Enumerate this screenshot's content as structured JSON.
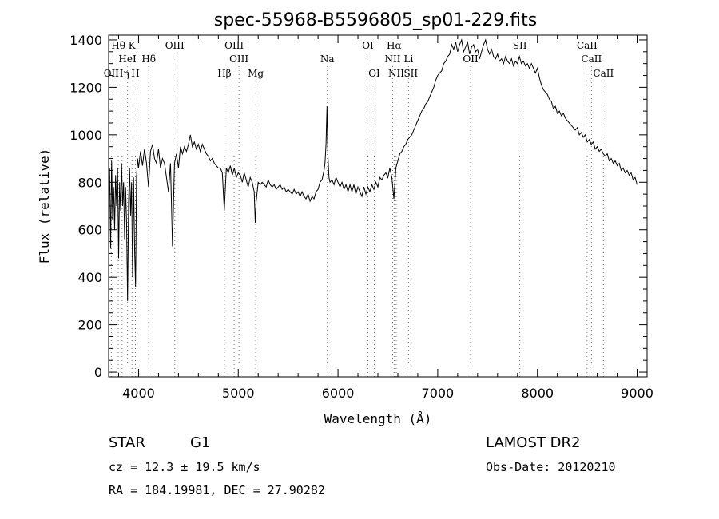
{
  "chart_data": {
    "type": "line",
    "title": "spec-55968-B5596805_sp01-229.fits",
    "xlabel": "Wavelength (Å)",
    "ylabel": "Flux (relative)",
    "xlim": [
      3700,
      9100
    ],
    "ylim": [
      -20,
      1420
    ],
    "xticks": [
      4000,
      5000,
      6000,
      7000,
      8000,
      9000
    ],
    "yticks": [
      0,
      200,
      400,
      600,
      800,
      1000,
      1200,
      1400
    ],
    "grid": false,
    "series": [
      {
        "points": [
          [
            3700,
            720
          ],
          [
            3710,
            860
          ],
          [
            3720,
            520
          ],
          [
            3730,
            890
          ],
          [
            3740,
            640
          ],
          [
            3750,
            780
          ],
          [
            3760,
            600
          ],
          [
            3770,
            830
          ],
          [
            3780,
            700
          ],
          [
            3790,
            860
          ],
          [
            3800,
            480
          ],
          [
            3810,
            800
          ],
          [
            3820,
            680
          ],
          [
            3830,
            880
          ],
          [
            3840,
            700
          ],
          [
            3850,
            800
          ],
          [
            3860,
            560
          ],
          [
            3870,
            780
          ],
          [
            3880,
            620
          ],
          [
            3890,
            300
          ],
          [
            3900,
            720
          ],
          [
            3910,
            860
          ],
          [
            3920,
            660
          ],
          [
            3930,
            800
          ],
          [
            3940,
            400
          ],
          [
            3950,
            820
          ],
          [
            3960,
            520
          ],
          [
            3970,
            360
          ],
          [
            3980,
            820
          ],
          [
            3990,
            900
          ],
          [
            4000,
            860
          ],
          [
            4020,
            930
          ],
          [
            4040,
            870
          ],
          [
            4060,
            940
          ],
          [
            4080,
            880
          ],
          [
            4100,
            780
          ],
          [
            4120,
            930
          ],
          [
            4140,
            960
          ],
          [
            4160,
            900
          ],
          [
            4180,
            880
          ],
          [
            4200,
            940
          ],
          [
            4220,
            860
          ],
          [
            4240,
            900
          ],
          [
            4260,
            880
          ],
          [
            4280,
            820
          ],
          [
            4300,
            760
          ],
          [
            4320,
            880
          ],
          [
            4340,
            530
          ],
          [
            4360,
            880
          ],
          [
            4380,
            920
          ],
          [
            4400,
            860
          ],
          [
            4420,
            950
          ],
          [
            4440,
            920
          ],
          [
            4460,
            950
          ],
          [
            4480,
            930
          ],
          [
            4500,
            960
          ],
          [
            4520,
            1000
          ],
          [
            4540,
            950
          ],
          [
            4560,
            970
          ],
          [
            4580,
            940
          ],
          [
            4600,
            960
          ],
          [
            4620,
            930
          ],
          [
            4640,
            960
          ],
          [
            4660,
            940
          ],
          [
            4680,
            920
          ],
          [
            4700,
            910
          ],
          [
            4720,
            890
          ],
          [
            4740,
            900
          ],
          [
            4760,
            880
          ],
          [
            4780,
            870
          ],
          [
            4800,
            860
          ],
          [
            4820,
            860
          ],
          [
            4840,
            840
          ],
          [
            4860,
            680
          ],
          [
            4880,
            860
          ],
          [
            4900,
            840
          ],
          [
            4920,
            870
          ],
          [
            4940,
            830
          ],
          [
            4960,
            860
          ],
          [
            4980,
            820
          ],
          [
            5000,
            840
          ],
          [
            5020,
            830
          ],
          [
            5040,
            800
          ],
          [
            5060,
            840
          ],
          [
            5080,
            810
          ],
          [
            5100,
            780
          ],
          [
            5120,
            820
          ],
          [
            5140,
            800
          ],
          [
            5160,
            760
          ],
          [
            5170,
            630
          ],
          [
            5180,
            720
          ],
          [
            5200,
            800
          ],
          [
            5220,
            790
          ],
          [
            5240,
            800
          ],
          [
            5260,
            790
          ],
          [
            5280,
            780
          ],
          [
            5300,
            810
          ],
          [
            5320,
            790
          ],
          [
            5340,
            780
          ],
          [
            5360,
            790
          ],
          [
            5380,
            770
          ],
          [
            5400,
            780
          ],
          [
            5420,
            790
          ],
          [
            5440,
            770
          ],
          [
            5460,
            780
          ],
          [
            5480,
            760
          ],
          [
            5500,
            770
          ],
          [
            5520,
            760
          ],
          [
            5540,
            750
          ],
          [
            5560,
            770
          ],
          [
            5580,
            750
          ],
          [
            5600,
            760
          ],
          [
            5620,
            740
          ],
          [
            5640,
            760
          ],
          [
            5660,
            740
          ],
          [
            5680,
            730
          ],
          [
            5700,
            750
          ],
          [
            5720,
            720
          ],
          [
            5740,
            740
          ],
          [
            5760,
            730
          ],
          [
            5780,
            760
          ],
          [
            5800,
            770
          ],
          [
            5820,
            800
          ],
          [
            5840,
            810
          ],
          [
            5860,
            850
          ],
          [
            5870,
            880
          ],
          [
            5880,
            960
          ],
          [
            5890,
            1120
          ],
          [
            5895,
            980
          ],
          [
            5900,
            900
          ],
          [
            5910,
            820
          ],
          [
            5920,
            800
          ],
          [
            5940,
            810
          ],
          [
            5960,
            790
          ],
          [
            5980,
            820
          ],
          [
            6000,
            800
          ],
          [
            6020,
            780
          ],
          [
            6040,
            800
          ],
          [
            6060,
            770
          ],
          [
            6080,
            790
          ],
          [
            6100,
            760
          ],
          [
            6120,
            790
          ],
          [
            6140,
            760
          ],
          [
            6160,
            790
          ],
          [
            6180,
            750
          ],
          [
            6200,
            780
          ],
          [
            6220,
            760
          ],
          [
            6240,
            740
          ],
          [
            6260,
            780
          ],
          [
            6280,
            750
          ],
          [
            6300,
            780
          ],
          [
            6320,
            760
          ],
          [
            6340,
            790
          ],
          [
            6360,
            770
          ],
          [
            6380,
            800
          ],
          [
            6400,
            780
          ],
          [
            6420,
            820
          ],
          [
            6440,
            810
          ],
          [
            6460,
            830
          ],
          [
            6480,
            840
          ],
          [
            6500,
            820
          ],
          [
            6520,
            860
          ],
          [
            6540,
            820
          ],
          [
            6560,
            730
          ],
          [
            6570,
            790
          ],
          [
            6580,
            860
          ],
          [
            6600,
            890
          ],
          [
            6620,
            920
          ],
          [
            6640,
            930
          ],
          [
            6660,
            950
          ],
          [
            6680,
            960
          ],
          [
            6700,
            980
          ],
          [
            6720,
            990
          ],
          [
            6740,
            1000
          ],
          [
            6760,
            1020
          ],
          [
            6780,
            1040
          ],
          [
            6800,
            1060
          ],
          [
            6820,
            1080
          ],
          [
            6840,
            1100
          ],
          [
            6860,
            1110
          ],
          [
            6880,
            1130
          ],
          [
            6900,
            1140
          ],
          [
            6920,
            1160
          ],
          [
            6940,
            1180
          ],
          [
            6960,
            1200
          ],
          [
            6980,
            1230
          ],
          [
            7000,
            1250
          ],
          [
            7020,
            1260
          ],
          [
            7040,
            1270
          ],
          [
            7060,
            1300
          ],
          [
            7080,
            1310
          ],
          [
            7100,
            1330
          ],
          [
            7120,
            1340
          ],
          [
            7140,
            1380
          ],
          [
            7160,
            1360
          ],
          [
            7180,
            1390
          ],
          [
            7200,
            1350
          ],
          [
            7220,
            1380
          ],
          [
            7240,
            1400
          ],
          [
            7260,
            1350
          ],
          [
            7280,
            1370
          ],
          [
            7300,
            1390
          ],
          [
            7320,
            1340
          ],
          [
            7340,
            1370
          ],
          [
            7360,
            1380
          ],
          [
            7380,
            1350
          ],
          [
            7400,
            1360
          ],
          [
            7420,
            1320
          ],
          [
            7440,
            1350
          ],
          [
            7460,
            1380
          ],
          [
            7480,
            1400
          ],
          [
            7500,
            1360
          ],
          [
            7520,
            1340
          ],
          [
            7540,
            1360
          ],
          [
            7560,
            1330
          ],
          [
            7580,
            1320
          ],
          [
            7600,
            1340
          ],
          [
            7620,
            1310
          ],
          [
            7640,
            1320
          ],
          [
            7660,
            1300
          ],
          [
            7680,
            1330
          ],
          [
            7700,
            1310
          ],
          [
            7720,
            1300
          ],
          [
            7740,
            1320
          ],
          [
            7760,
            1290
          ],
          [
            7780,
            1310
          ],
          [
            7800,
            1300
          ],
          [
            7820,
            1330
          ],
          [
            7840,
            1300
          ],
          [
            7860,
            1310
          ],
          [
            7880,
            1290
          ],
          [
            7900,
            1300
          ],
          [
            7920,
            1280
          ],
          [
            7940,
            1300
          ],
          [
            7960,
            1280
          ],
          [
            7980,
            1260
          ],
          [
            8000,
            1280
          ],
          [
            8020,
            1240
          ],
          [
            8040,
            1210
          ],
          [
            8060,
            1190
          ],
          [
            8080,
            1180
          ],
          [
            8100,
            1170
          ],
          [
            8120,
            1150
          ],
          [
            8140,
            1140
          ],
          [
            8160,
            1110
          ],
          [
            8180,
            1120
          ],
          [
            8200,
            1090
          ],
          [
            8220,
            1100
          ],
          [
            8240,
            1080
          ],
          [
            8260,
            1090
          ],
          [
            8280,
            1070
          ],
          [
            8300,
            1060
          ],
          [
            8320,
            1050
          ],
          [
            8340,
            1040
          ],
          [
            8360,
            1030
          ],
          [
            8380,
            1020
          ],
          [
            8400,
            1030
          ],
          [
            8420,
            1000
          ],
          [
            8440,
            1010
          ],
          [
            8460,
            990
          ],
          [
            8480,
            1000
          ],
          [
            8500,
            970
          ],
          [
            8520,
            980
          ],
          [
            8540,
            960
          ],
          [
            8560,
            970
          ],
          [
            8580,
            940
          ],
          [
            8600,
            950
          ],
          [
            8620,
            930
          ],
          [
            8640,
            940
          ],
          [
            8660,
            920
          ],
          [
            8680,
            910
          ],
          [
            8700,
            920
          ],
          [
            8720,
            890
          ],
          [
            8740,
            900
          ],
          [
            8760,
            880
          ],
          [
            8780,
            890
          ],
          [
            8800,
            870
          ],
          [
            8820,
            880
          ],
          [
            8840,
            850
          ],
          [
            8860,
            860
          ],
          [
            8880,
            840
          ],
          [
            8900,
            850
          ],
          [
            8920,
            830
          ],
          [
            8940,
            840
          ],
          [
            8960,
            810
          ],
          [
            8980,
            820
          ],
          [
            9000,
            790
          ]
        ]
      }
    ],
    "line_markers": [
      {
        "label": "Hθ",
        "wavelength": 3797,
        "row": 1
      },
      {
        "label": "K",
        "wavelength": 3934,
        "row": 1
      },
      {
        "label": "OIII",
        "wavelength": 4363,
        "row": 1
      },
      {
        "label": "OIII",
        "wavelength": 4959,
        "row": 1
      },
      {
        "label": "OI",
        "wavelength": 6300,
        "row": 1
      },
      {
        "label": "Hα",
        "wavelength": 6563,
        "row": 1
      },
      {
        "label": "SII",
        "wavelength": 7823,
        "row": 1
      },
      {
        "label": "CaII",
        "wavelength": 8498,
        "row": 1
      },
      {
        "label": "HeI",
        "wavelength": 3889,
        "row": 2
      },
      {
        "label": "Hδ",
        "wavelength": 4102,
        "row": 2
      },
      {
        "label": "OIII",
        "wavelength": 5007,
        "row": 2
      },
      {
        "label": "Na",
        "wavelength": 5893,
        "row": 2
      },
      {
        "label": "NII",
        "wavelength": 6548,
        "row": 2
      },
      {
        "label": "Li",
        "wavelength": 6708,
        "row": 2
      },
      {
        "label": "OII",
        "wavelength": 7330,
        "row": 2
      },
      {
        "label": "CaII",
        "wavelength": 8542,
        "row": 2
      },
      {
        "label": "OII",
        "wavelength": 3727,
        "row": 3
      },
      {
        "label": "Hη",
        "wavelength": 3835,
        "row": 3
      },
      {
        "label": "H",
        "wavelength": 3968,
        "row": 3
      },
      {
        "label": "Hβ",
        "wavelength": 4861,
        "row": 3
      },
      {
        "label": "Mg",
        "wavelength": 5175,
        "row": 3
      },
      {
        "label": "OI",
        "wavelength": 6364,
        "row": 3
      },
      {
        "label": "NII",
        "wavelength": 6584,
        "row": 3
      },
      {
        "label": "SII",
        "wavelength": 6731,
        "row": 3
      },
      {
        "label": "CaII",
        "wavelength": 8662,
        "row": 3
      }
    ]
  },
  "info": {
    "class": "STAR",
    "subclass": "G1",
    "survey": "LAMOST DR2",
    "cz": "cz = 12.3 ± 19.5 km/s",
    "obs_date": "Obs-Date: 20120210",
    "coords": "RA = 184.19981, DEC =  27.90282"
  }
}
